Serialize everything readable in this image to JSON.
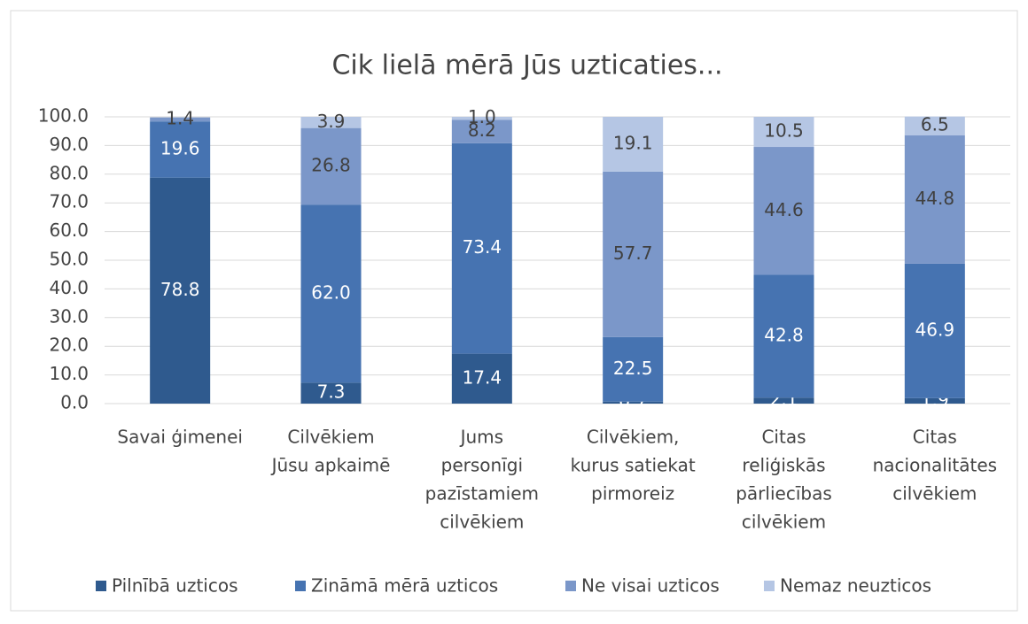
{
  "chart_data": {
    "type": "stacked_bar",
    "title": "Cik lielā mērā Jūs uzticaties...",
    "categories": [
      [
        "Savai ģimenei"
      ],
      [
        "Cilvēkiem",
        "Jūsu apkaimē"
      ],
      [
        "Jums",
        "personīgi",
        "pazīstamiem",
        "cilvēkiem"
      ],
      [
        "Cilvēkiem,",
        "kurus satiekat",
        "pirmoreiz"
      ],
      [
        "Citas",
        "reliģiskās",
        "pārliecības",
        "cilvēkiem"
      ],
      [
        "Citas",
        "nacionalitātes",
        "cilvēkiem"
      ]
    ],
    "series": [
      {
        "name": "Pilnībā uzticos",
        "color": "#2f5a8e",
        "values": [
          78.8,
          7.3,
          17.4,
          0.7,
          2.1,
          1.9
        ],
        "value_labels": [
          "78.8",
          "7.3",
          "17.4",
          "0.7",
          "2.1",
          "1.9"
        ]
      },
      {
        "name": "Zināmā mērā uzticos",
        "color": "#4673b1",
        "values": [
          19.6,
          62.0,
          73.4,
          22.5,
          42.8,
          46.9
        ],
        "value_labels": [
          "19.6",
          "62.0",
          "73.4",
          "22.5",
          "42.8",
          "46.9"
        ]
      },
      {
        "name": "Ne visai uzticos",
        "color": "#7b97c9",
        "values": [
          1.4,
          26.8,
          8.2,
          57.7,
          44.6,
          44.8
        ],
        "value_labels": [
          "1.4",
          "26.8",
          "8.2",
          "57.7",
          "44.6",
          "44.8"
        ]
      },
      {
        "name": "Nemaz neuzticos",
        "color": "#b5c6e4",
        "values": [
          null,
          3.9,
          1.0,
          19.1,
          10.5,
          6.5
        ],
        "value_labels": [
          null,
          "3.9",
          "1.0",
          "19.1",
          "10.5",
          "6.5"
        ]
      }
    ],
    "ylim": [
      0,
      100
    ],
    "yticks": [
      {
        "value": 0,
        "label": "0.0"
      },
      {
        "value": 10,
        "label": "10.0"
      },
      {
        "value": 20,
        "label": "20.0"
      },
      {
        "value": 30,
        "label": "30.0"
      },
      {
        "value": 40,
        "label": "40.0"
      },
      {
        "value": 50,
        "label": "50.0"
      },
      {
        "value": 60,
        "label": "60.0"
      },
      {
        "value": 70,
        "label": "70.0"
      },
      {
        "value": 80,
        "label": "80.0"
      },
      {
        "value": 90,
        "label": "90.0"
      },
      {
        "value": 100,
        "label": "100.0"
      }
    ],
    "grid": true,
    "legend": "bottom"
  }
}
